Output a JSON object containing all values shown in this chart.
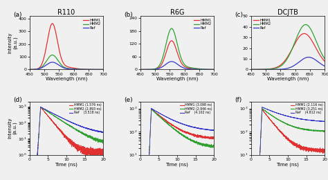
{
  "titles": [
    "R110",
    "R6G",
    "DCJTB"
  ],
  "panel_labels": [
    "(a)",
    "(b)",
    "(c)",
    "(d)",
    "(e)",
    "(f)"
  ],
  "colors": {
    "HMM1": "#e03030",
    "HMM2": "#30a030",
    "Ref": "#3535cc"
  },
  "spectra": {
    "R110": {
      "xlim": [
        450,
        700
      ],
      "ylim": [
        0,
        420
      ],
      "yticks": [
        0,
        100,
        200,
        300,
        400
      ],
      "HMM1_peak": 527,
      "HMM1_amp": 350,
      "HMM1_sigma": 17,
      "HMM2_peak": 527,
      "HMM2_amp": 110,
      "HMM2_sigma": 19,
      "Ref_peak": 527,
      "Ref_amp": 55,
      "Ref_sigma": 21
    },
    "R6G": {
      "xlim": [
        450,
        700
      ],
      "ylim": [
        0,
        250
      ],
      "yticks": [
        0,
        60,
        120,
        180,
        240
      ],
      "HMM1_peak": 556,
      "HMM1_amp": 130,
      "HMM1_sigma": 18,
      "HMM2_peak": 556,
      "HMM2_amp": 185,
      "HMM2_sigma": 19,
      "Ref_peak": 556,
      "Ref_amp": 36,
      "Ref_sigma": 21
    },
    "DCJTB": {
      "xlim": [
        450,
        700
      ],
      "ylim": [
        0,
        50
      ],
      "yticks": [
        0,
        10,
        20,
        30,
        40,
        50
      ],
      "HMM1_peak": 630,
      "HMM1_amp": 32,
      "HMM1_sigma": 38,
      "HMM2_peak": 635,
      "HMM2_amp": 40,
      "HMM2_sigma": 36,
      "Ref_peak": 645,
      "Ref_amp": 11,
      "Ref_sigma": 32
    }
  },
  "kinetics": {
    "d": {
      "lifetimes": {
        "HMM1": "1.576 ns",
        "HMM2": "2.893 ns",
        "Ref": "3.518 ns"
      },
      "HMM1_tau": 1.576,
      "HMM2_tau": 2.893,
      "Ref_tau": 3.518,
      "HMM1_amp": 900,
      "HMM2_amp": 900,
      "Ref_amp": 900,
      "HMM1_base": 1.5,
      "HMM2_base": 4.0,
      "Ref_base": 18.0,
      "ylim": [
        1,
        2000
      ],
      "yticks": [
        1,
        10,
        100,
        1000
      ]
    },
    "e": {
      "lifetimes": {
        "HMM1": "3.098 ns",
        "HMM2": "2.946 ns",
        "Ref": "4.102 ns"
      },
      "HMM1_tau": 3.098,
      "HMM2_tau": 2.946,
      "Ref_tau": 4.102,
      "HMM1_amp": 900,
      "HMM2_amp": 900,
      "Ref_amp": 900,
      "HMM1_base": 50.0,
      "HMM2_base": 20.0,
      "Ref_base": 100.0,
      "ylim": [
        10,
        2000
      ],
      "yticks": [
        10,
        100,
        1000
      ]
    },
    "f": {
      "lifetimes": {
        "HMM1": "2.116 ns",
        "HMM2": "3.251 ns",
        "Ref": "4.812 ns"
      },
      "HMM1_tau": 2.116,
      "HMM2_tau": 3.251,
      "Ref_tau": 4.812,
      "HMM1_amp": 900,
      "HMM2_amp": 900,
      "Ref_amp": 900,
      "HMM1_base": 15.0,
      "HMM2_base": 100.0,
      "Ref_base": 250.0,
      "ylim": [
        10,
        2000
      ],
      "yticks": [
        10,
        100,
        1000
      ]
    }
  }
}
